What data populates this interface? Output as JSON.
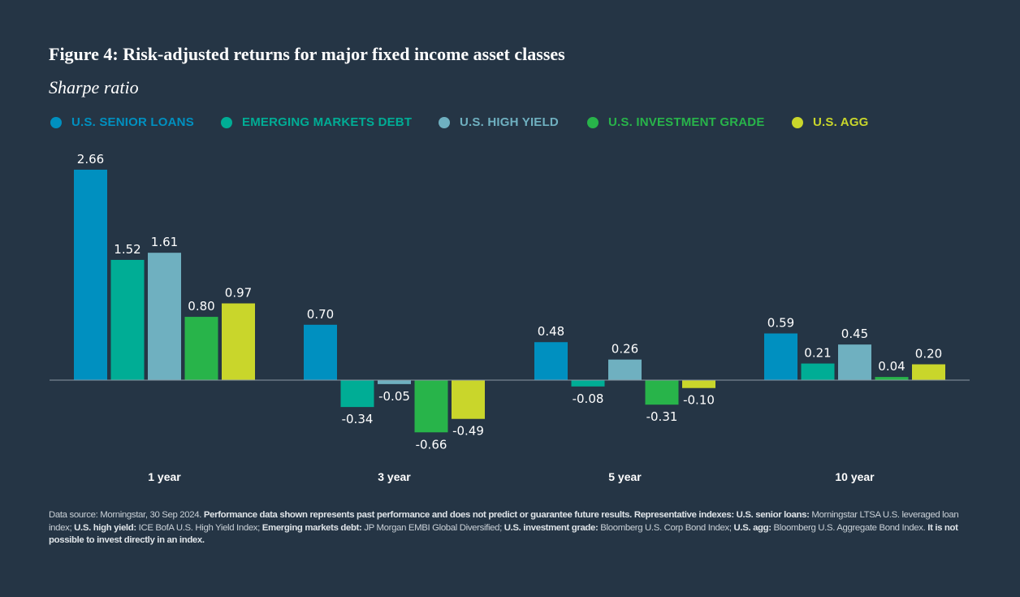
{
  "title": "Figure 4: Risk-adjusted returns for major fixed income asset classes",
  "subtitle": "Sharpe ratio",
  "chart_data": {
    "type": "bar",
    "title": "Figure 4: Risk-adjusted returns for major fixed income asset classes",
    "ylabel": "Sharpe ratio",
    "categories": [
      "1 year",
      "3 year",
      "5 year",
      "10 year"
    ],
    "series": [
      {
        "name": "U.S. SENIOR LOANS",
        "color": "#0090c0",
        "values": [
          2.66,
          0.7,
          0.48,
          0.59
        ],
        "labels": [
          "2.66",
          "0.70",
          "0.48",
          "0.59"
        ]
      },
      {
        "name": "EMERGING MARKETS DEBT",
        "color": "#00ad95",
        "values": [
          1.52,
          -0.34,
          -0.08,
          0.21
        ],
        "labels": [
          "1.52",
          "-0.34",
          "-0.08",
          "0.21"
        ]
      },
      {
        "name": "U.S. HIGH YIELD",
        "color": "#6fb0c0",
        "values": [
          1.61,
          -0.05,
          0.26,
          0.45
        ],
        "labels": [
          "1.61",
          "-0.05",
          "0.26",
          "0.45"
        ]
      },
      {
        "name": "U.S. INVESTMENT GRADE",
        "color": "#28b44a",
        "values": [
          0.8,
          -0.66,
          -0.31,
          0.04
        ],
        "labels": [
          "0.80",
          "-0.66",
          "-0.31",
          "0.04"
        ]
      },
      {
        "name": "U.S. AGG",
        "color": "#c9d62b",
        "values": [
          0.97,
          -0.49,
          -0.1,
          0.2
        ],
        "labels": [
          "0.97",
          "-0.49",
          "-0.10",
          "0.20"
        ]
      }
    ],
    "legend": "top-left",
    "grid": false,
    "ylim": [
      -0.8,
      2.8
    ]
  },
  "footer": {
    "source": "Data source: Morningstar, 30 Sep 2024.",
    "perf": "Performance data shown represents past performance and does not predict or guarantee future results.",
    "rep": "Representative indexes:",
    "sl_label": "U.S. senior loans:",
    "sl_text": "Morningstar LTSA U.S. leveraged loan index;",
    "hy_label": "U.S. high yield:",
    "hy_text": "ICE BofA U.S. High Yield Index;",
    "em_label": "Emerging markets debt:",
    "em_text": "JP Morgan EMBI Global Diversified;",
    "ig_label": "U.S. investment grade:",
    "ig_text": "Bloomberg U.S. Corp Bond Index;",
    "agg_label": "U.S. agg:",
    "agg_text": "Bloomberg U.S. Aggregate Bond Index.",
    "closing": "It is not possible to invest directly in an index."
  }
}
